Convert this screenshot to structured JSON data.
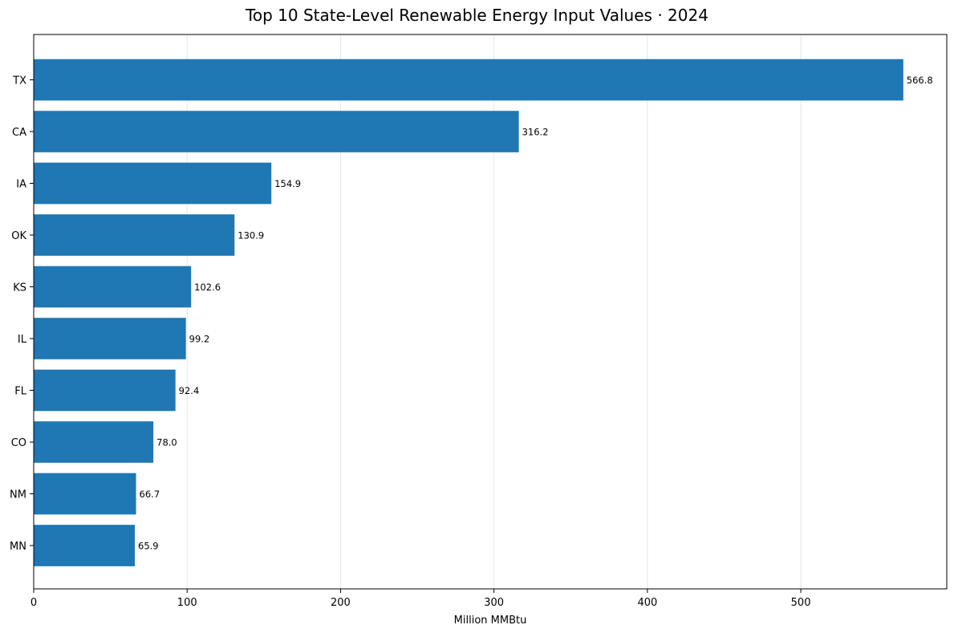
{
  "chart_data": {
    "type": "bar",
    "orientation": "horizontal",
    "title": "Top 10 State-Level Renewable Energy Input Values · 2024",
    "xlabel": "Million MMBtu",
    "ylabel": "",
    "categories": [
      "TX",
      "CA",
      "IA",
      "OK",
      "KS",
      "IL",
      "FL",
      "CO",
      "NM",
      "MN"
    ],
    "values": [
      566.8,
      316.2,
      154.9,
      130.9,
      102.6,
      99.2,
      92.4,
      78.0,
      66.7,
      65.9
    ],
    "data_labels": [
      "566.8",
      "316.2",
      "154.9",
      "130.9",
      "102.6",
      "99.2",
      "92.4",
      "78.0",
      "66.7",
      "65.9"
    ],
    "xticks": [
      0,
      100,
      200,
      300,
      400,
      500
    ],
    "xlim": [
      0,
      595.14
    ],
    "grid": "x",
    "bar_color": "#1f77b4",
    "grid_color": "#e6e6e6"
  }
}
